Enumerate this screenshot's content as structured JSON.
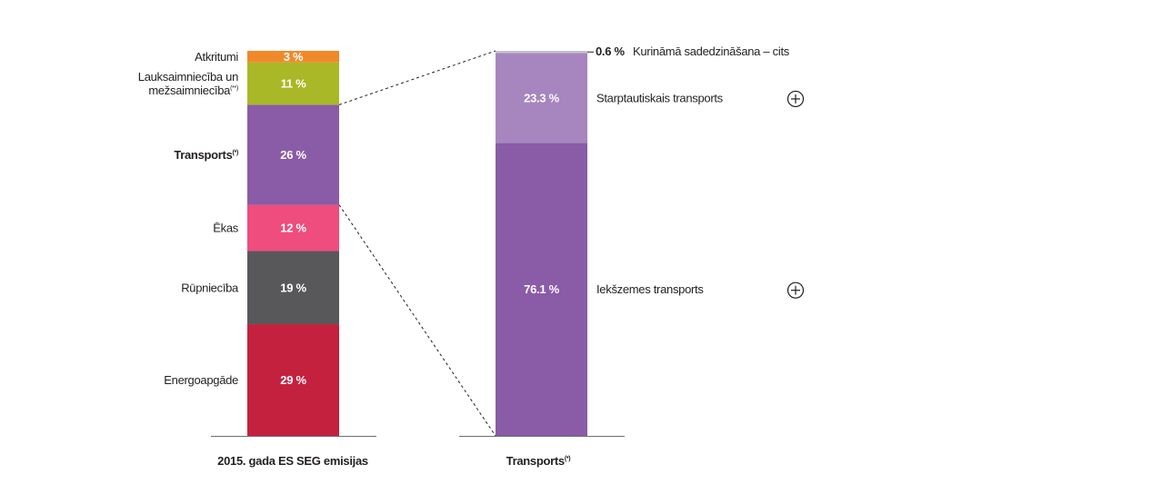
{
  "chart_data": [
    {
      "type": "bar",
      "stacked": true,
      "title": "",
      "xlabel": "2015. gada ES SEG emisijas",
      "ylabel": "",
      "unit": "%",
      "categories": [
        "2015. gada ES SEG emisijas"
      ],
      "series": [
        {
          "key": "energy",
          "name": "Energoapgāde",
          "values": [
            29
          ],
          "label": "29 %",
          "color": "#c4213f"
        },
        {
          "key": "industry",
          "name": "Rūpniecība",
          "values": [
            19
          ],
          "label": "19 %",
          "color": "#58585a"
        },
        {
          "key": "buildings",
          "name": "Ēkas",
          "values": [
            12
          ],
          "label": "12 %",
          "color": "#ee4d7d"
        },
        {
          "key": "transport",
          "name": "Transports",
          "name_sup": "(*)",
          "values": [
            26
          ],
          "label": "26 %",
          "color": "#8a5ba6"
        },
        {
          "key": "agri",
          "name": "Lauksaimniecība un",
          "name2": "mežsaimniecība",
          "name_sup": "(**)",
          "values": [
            11
          ],
          "label": "11 %",
          "color": "#a9b826"
        },
        {
          "key": "waste",
          "name": "Atkritumi",
          "values": [
            3
          ],
          "label": "3 %",
          "color": "#f0892a"
        }
      ]
    },
    {
      "type": "bar",
      "stacked": true,
      "title": "",
      "xlabel": "Transports",
      "xlabel_sup": "(*)",
      "ylabel": "",
      "unit": "%",
      "categories": [
        "Transports"
      ],
      "series": [
        {
          "key": "inland",
          "name": "Iekšzemes transports",
          "values": [
            76.1
          ],
          "label": "76.1 %",
          "color": "#8a5ba6"
        },
        {
          "key": "intl",
          "name": "Starptautiskais transports",
          "values": [
            23.3
          ],
          "label": "23.3 %",
          "color": "#a785bf"
        },
        {
          "key": "fuel",
          "name": "Kurināmā sadedzināšana – cits",
          "values": [
            0.6
          ],
          "label": "0.6 %",
          "color": "#c4c0cc"
        }
      ]
    }
  ],
  "icons": {
    "expand": "circle-plus-icon"
  }
}
